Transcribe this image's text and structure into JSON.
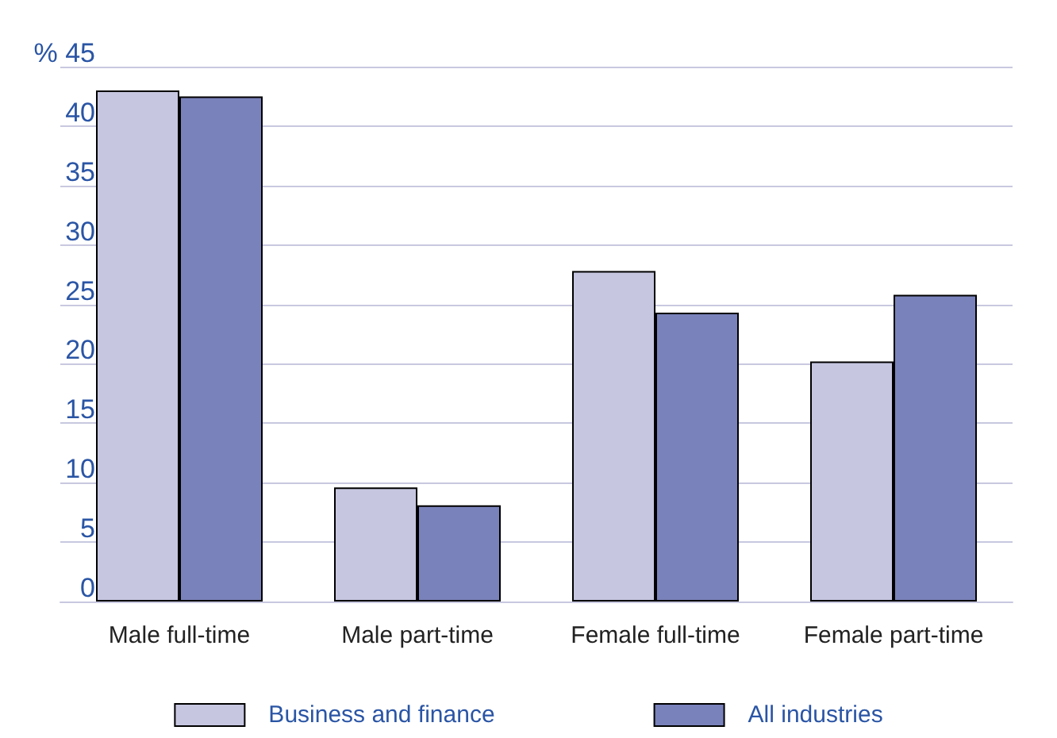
{
  "chart_data": {
    "type": "bar",
    "categories": [
      "Male full-time",
      "Male part-time",
      "Female full-time",
      "Female part-time"
    ],
    "series": [
      {
        "name": "Business and finance",
        "color": "#c6c6e1",
        "values": [
          43.0,
          9.6,
          27.8,
          20.2
        ]
      },
      {
        "name": "All industries",
        "color": "#7a82bb",
        "values": [
          42.5,
          8.1,
          24.3,
          25.8
        ]
      }
    ],
    "ylim": [
      0,
      45
    ],
    "yticks": [
      0,
      5,
      10,
      15,
      20,
      25,
      30,
      35,
      40,
      {
        "value": 45,
        "label": "% 45"
      }
    ],
    "grid": "y",
    "legend": "bottom"
  }
}
